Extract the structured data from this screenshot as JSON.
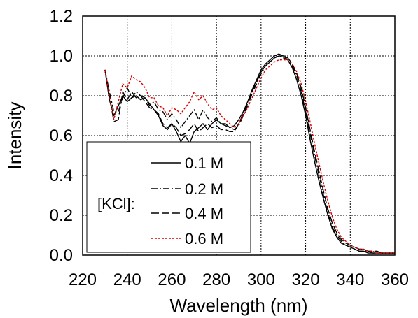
{
  "chart_data": {
    "type": "line",
    "xlabel": "Wavelength (nm)",
    "ylabel": "Intensity",
    "xlim": [
      220,
      360
    ],
    "ylim": [
      0.0,
      1.2
    ],
    "xticks": [
      "220",
      "240",
      "260",
      "280",
      "300",
      "320",
      "340",
      "360"
    ],
    "yticks": [
      "0.0",
      "0.2",
      "0.4",
      "0.6",
      "0.8",
      "1.0",
      "1.2"
    ],
    "grid": true,
    "legend": {
      "position": "bottom-left",
      "title": "[KCl]:",
      "entries": [
        "0.1 M",
        "0.2 M",
        "0.4 M",
        "0.6 M"
      ]
    },
    "series": [
      {
        "name": "0.1 M",
        "color": "#000000",
        "dash": "solid",
        "x": [
          230,
          232,
          234,
          236,
          238,
          240,
          242,
          244,
          246,
          248,
          250,
          252,
          254,
          256,
          258,
          260,
          262,
          264,
          266,
          268,
          270,
          272,
          274,
          276,
          278,
          280,
          282,
          284,
          286,
          288,
          290,
          292,
          294,
          296,
          298,
          300,
          302,
          304,
          306,
          308,
          310,
          312,
          314,
          316,
          318,
          320,
          322,
          324,
          326,
          328,
          330,
          332,
          334,
          336,
          338,
          340,
          342,
          344,
          346,
          348,
          350,
          352,
          354,
          356,
          358,
          360
        ],
        "y": [
          0.93,
          0.78,
          0.7,
          0.75,
          0.8,
          0.77,
          0.79,
          0.8,
          0.78,
          0.79,
          0.76,
          0.73,
          0.7,
          0.65,
          0.63,
          0.66,
          0.62,
          0.57,
          0.6,
          0.56,
          0.62,
          0.64,
          0.66,
          0.63,
          0.66,
          0.68,
          0.66,
          0.66,
          0.64,
          0.65,
          0.68,
          0.72,
          0.77,
          0.83,
          0.88,
          0.93,
          0.96,
          0.98,
          1.0,
          1.01,
          1.0,
          0.98,
          0.94,
          0.88,
          0.8,
          0.7,
          0.58,
          0.47,
          0.37,
          0.28,
          0.2,
          0.13,
          0.09,
          0.06,
          0.05,
          0.04,
          0.03,
          0.02,
          0.02,
          0.01,
          0.01,
          0.01,
          0.01,
          0.01,
          0.01,
          0.01
        ]
      },
      {
        "name": "0.2 M",
        "color": "#000000",
        "dash": "dashdot",
        "x": [
          230,
          232,
          234,
          236,
          238,
          240,
          242,
          244,
          246,
          248,
          250,
          252,
          254,
          256,
          258,
          260,
          262,
          264,
          266,
          268,
          270,
          272,
          274,
          276,
          278,
          280,
          282,
          284,
          286,
          288,
          290,
          292,
          294,
          296,
          298,
          300,
          302,
          304,
          306,
          308,
          310,
          312,
          314,
          316,
          318,
          320,
          322,
          324,
          326,
          328,
          330,
          332,
          334,
          336,
          338,
          340,
          342,
          344,
          346,
          348,
          350,
          352,
          354,
          356,
          358,
          360
        ],
        "y": [
          0.93,
          0.82,
          0.72,
          0.72,
          0.79,
          0.84,
          0.79,
          0.82,
          0.8,
          0.79,
          0.75,
          0.77,
          0.73,
          0.72,
          0.68,
          0.71,
          0.68,
          0.64,
          0.67,
          0.7,
          0.73,
          0.68,
          0.73,
          0.69,
          0.67,
          0.69,
          0.66,
          0.65,
          0.64,
          0.63,
          0.65,
          0.7,
          0.75,
          0.81,
          0.86,
          0.91,
          0.95,
          0.97,
          0.99,
          1.0,
          0.99,
          0.98,
          0.95,
          0.9,
          0.82,
          0.72,
          0.61,
          0.5,
          0.4,
          0.3,
          0.21,
          0.14,
          0.1,
          0.07,
          0.05,
          0.04,
          0.03,
          0.02,
          0.02,
          0.02,
          0.01,
          0.01,
          0.01,
          0.01,
          0.01,
          0.01
        ]
      },
      {
        "name": "0.4 M",
        "color": "#000000",
        "dash": "longdash",
        "x": [
          230,
          232,
          234,
          236,
          238,
          240,
          242,
          244,
          246,
          248,
          250,
          252,
          254,
          256,
          258,
          260,
          262,
          264,
          266,
          268,
          270,
          272,
          274,
          276,
          278,
          280,
          282,
          284,
          286,
          288,
          290,
          292,
          294,
          296,
          298,
          300,
          302,
          304,
          306,
          308,
          310,
          312,
          314,
          316,
          318,
          320,
          322,
          324,
          326,
          328,
          330,
          332,
          334,
          336,
          338,
          340,
          342,
          344,
          346,
          348,
          350,
          352,
          354,
          356,
          358,
          360
        ],
        "y": [
          0.93,
          0.8,
          0.67,
          0.68,
          0.82,
          0.78,
          0.82,
          0.79,
          0.8,
          0.77,
          0.74,
          0.73,
          0.71,
          0.66,
          0.64,
          0.66,
          0.64,
          0.6,
          0.61,
          0.63,
          0.66,
          0.62,
          0.64,
          0.66,
          0.64,
          0.65,
          0.63,
          0.63,
          0.62,
          0.62,
          0.66,
          0.71,
          0.76,
          0.82,
          0.87,
          0.92,
          0.95,
          0.97,
          0.99,
          1.0,
          1.0,
          0.99,
          0.96,
          0.91,
          0.84,
          0.74,
          0.63,
          0.52,
          0.42,
          0.32,
          0.23,
          0.16,
          0.11,
          0.08,
          0.06,
          0.05,
          0.04,
          0.03,
          0.03,
          0.02,
          0.02,
          0.02,
          0.01,
          0.01,
          0.01,
          0.01
        ]
      },
      {
        "name": "0.6 M",
        "color": "#d40000",
        "dash": "dotted",
        "x": [
          230,
          232,
          234,
          236,
          238,
          240,
          242,
          244,
          246,
          248,
          250,
          252,
          254,
          256,
          258,
          260,
          262,
          264,
          266,
          268,
          270,
          272,
          274,
          276,
          278,
          280,
          282,
          284,
          286,
          288,
          290,
          292,
          294,
          296,
          298,
          300,
          302,
          304,
          306,
          308,
          310,
          312,
          314,
          316,
          318,
          320,
          322,
          324,
          326,
          328,
          330,
          332,
          334,
          336,
          338,
          340,
          342,
          344,
          346,
          348,
          350,
          352,
          354,
          356,
          358,
          360
        ],
        "y": [
          0.93,
          0.8,
          0.68,
          0.77,
          0.86,
          0.84,
          0.9,
          0.88,
          0.87,
          0.84,
          0.79,
          0.79,
          0.75,
          0.74,
          0.7,
          0.74,
          0.73,
          0.71,
          0.74,
          0.77,
          0.82,
          0.78,
          0.8,
          0.76,
          0.73,
          0.74,
          0.7,
          0.68,
          0.66,
          0.64,
          0.66,
          0.7,
          0.74,
          0.79,
          0.84,
          0.89,
          0.93,
          0.95,
          0.97,
          0.98,
          0.98,
          0.98,
          0.96,
          0.92,
          0.86,
          0.77,
          0.67,
          0.56,
          0.46,
          0.36,
          0.27,
          0.19,
          0.13,
          0.09,
          0.07,
          0.05,
          0.04,
          0.03,
          0.03,
          0.02,
          0.02,
          0.01,
          0.01,
          0.01,
          0.01,
          0.01
        ]
      }
    ]
  }
}
